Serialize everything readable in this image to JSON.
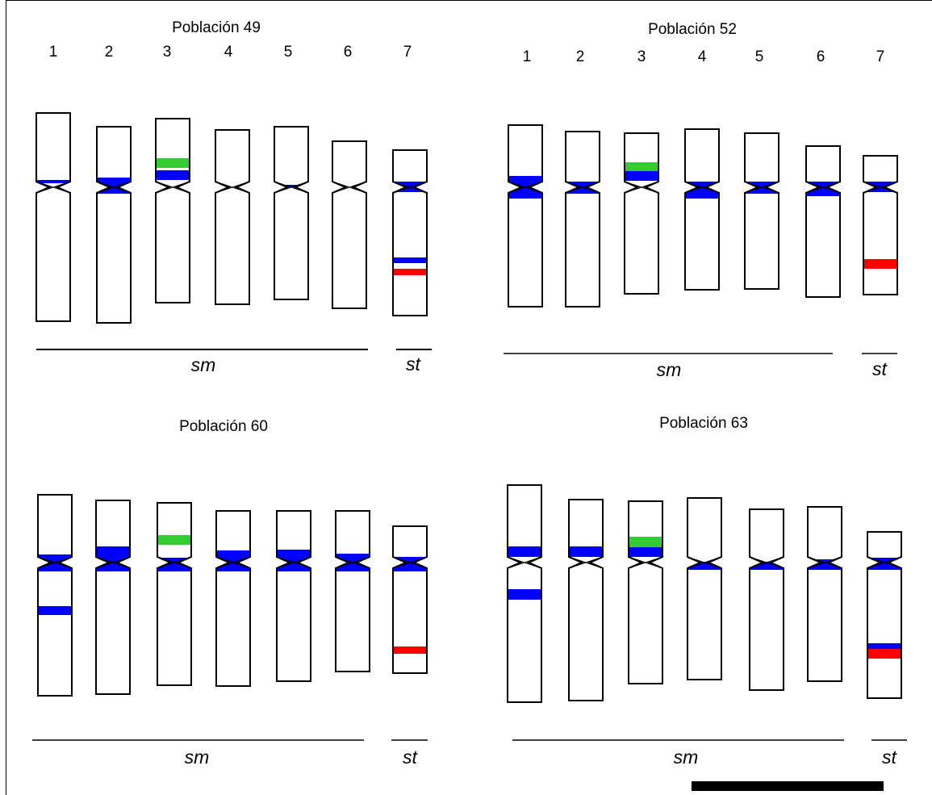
{
  "colors": {
    "blue": "#0000ff",
    "green": "#33cc33",
    "red": "#ff0000",
    "outline": "#000000"
  },
  "panels": [
    {
      "title": "Población 49",
      "chromosome_numbers": [
        "1",
        "2",
        "3",
        "4",
        "5",
        "6",
        "7"
      ],
      "group_labels": [
        "sm",
        "st"
      ],
      "bands": [
        {
          "chromosome": "1",
          "color": "blue"
        },
        {
          "chromosome": "2",
          "color": "blue"
        },
        {
          "chromosome": "3",
          "color": "green"
        },
        {
          "chromosome": "3",
          "color": "blue"
        },
        {
          "chromosome": "5",
          "color": "blue"
        },
        {
          "chromosome": "7",
          "color": "blue"
        },
        {
          "chromosome": "7",
          "color": "blue"
        },
        {
          "chromosome": "7",
          "color": "red"
        }
      ]
    },
    {
      "title": "Población 52",
      "chromosome_numbers": [
        "1",
        "2",
        "3",
        "4",
        "5",
        "6",
        "7"
      ],
      "group_labels": [
        "sm",
        "st"
      ],
      "bands": [
        {
          "chromosome": "1",
          "color": "blue"
        },
        {
          "chromosome": "2",
          "color": "blue"
        },
        {
          "chromosome": "3",
          "color": "green"
        },
        {
          "chromosome": "3",
          "color": "blue"
        },
        {
          "chromosome": "4",
          "color": "blue"
        },
        {
          "chromosome": "5",
          "color": "blue"
        },
        {
          "chromosome": "6",
          "color": "blue"
        },
        {
          "chromosome": "7",
          "color": "blue"
        },
        {
          "chromosome": "7",
          "color": "red"
        }
      ]
    },
    {
      "title": "Población 60",
      "chromosome_numbers": [],
      "group_labels": [
        "sm",
        "st"
      ],
      "bands": [
        {
          "chromosome": "1",
          "color": "blue"
        },
        {
          "chromosome": "1",
          "color": "blue"
        },
        {
          "chromosome": "2",
          "color": "blue"
        },
        {
          "chromosome": "3",
          "color": "green"
        },
        {
          "chromosome": "3",
          "color": "blue"
        },
        {
          "chromosome": "4",
          "color": "blue"
        },
        {
          "chromosome": "5",
          "color": "blue"
        },
        {
          "chromosome": "6",
          "color": "blue"
        },
        {
          "chromosome": "7",
          "color": "blue"
        },
        {
          "chromosome": "7",
          "color": "red"
        }
      ]
    },
    {
      "title": "Población 63",
      "chromosome_numbers": [],
      "group_labels": [
        "sm",
        "st"
      ],
      "bands": [
        {
          "chromosome": "1",
          "color": "blue"
        },
        {
          "chromosome": "1",
          "color": "blue"
        },
        {
          "chromosome": "2",
          "color": "blue"
        },
        {
          "chromosome": "3",
          "color": "green"
        },
        {
          "chromosome": "3",
          "color": "blue"
        },
        {
          "chromosome": "4",
          "color": "blue"
        },
        {
          "chromosome": "5",
          "color": "blue"
        },
        {
          "chromosome": "6",
          "color": "blue"
        },
        {
          "chromosome": "7",
          "color": "blue"
        },
        {
          "chromosome": "7",
          "color": "blue"
        },
        {
          "chromosome": "7",
          "color": "red"
        }
      ]
    }
  ]
}
